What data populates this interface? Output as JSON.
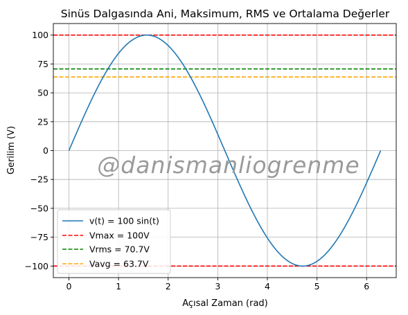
{
  "chart_data": {
    "type": "line",
    "title": "Sinüs Dalgasında Ani, Maksimum, RMS ve Ortalama Değerler",
    "xlabel": "Açısal Zaman (rad)",
    "ylabel": "Gerilim (V)",
    "xlim": [
      -0.314,
      6.597
    ],
    "ylim": [
      -110,
      110
    ],
    "x_ticks": [
      0,
      1,
      2,
      3,
      4,
      5,
      6
    ],
    "y_ticks": [
      -100,
      -75,
      -50,
      -25,
      0,
      25,
      50,
      75,
      100
    ],
    "x_tick_labels": [
      "0",
      "1",
      "2",
      "3",
      "4",
      "5",
      "6"
    ],
    "y_tick_labels": [
      "−100",
      "−75",
      "−50",
      "−25",
      "0",
      "25",
      "50",
      "75",
      "100"
    ],
    "grid": true,
    "legend_position": "lower-left",
    "series": [
      {
        "name": "v(t) = 100 sin(t)",
        "kind": "function",
        "function": "100*sin(t)",
        "x_range": [
          0,
          6.283
        ],
        "color": "#1f77b4",
        "style": "solid"
      },
      {
        "name": "Vmax = 100V",
        "kind": "hline",
        "y": 100,
        "color": "#ff0000",
        "style": "dashed"
      },
      {
        "name": "",
        "kind": "hline",
        "y": -100,
        "color": "#ff0000",
        "style": "dashed"
      },
      {
        "name": "Vrms = 70.7V",
        "kind": "hline",
        "y": 70.7,
        "color": "#008000",
        "style": "dashed"
      },
      {
        "name": "Vavg = 63.7V",
        "kind": "hline",
        "y": 63.7,
        "color": "#ffa500",
        "style": "dashed"
      }
    ],
    "annotations": [
      {
        "text": "@danismanliogrenme",
        "kind": "watermark"
      }
    ]
  }
}
